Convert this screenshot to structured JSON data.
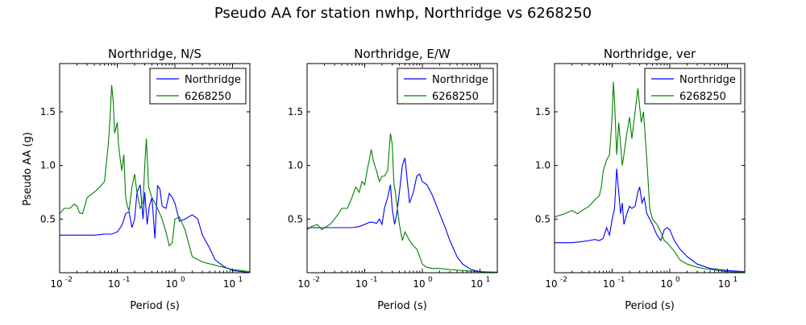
{
  "figure": {
    "suptitle": "Pseudo AA for station nwhp, Northridge vs 6268250",
    "ylabel": "Pseudo AA (g)"
  },
  "chart_data": [
    {
      "type": "line",
      "title": "Northridge, N/S",
      "xlabel": "Period (s)",
      "ylabel": "Pseudo AA (g)",
      "x_scale": "log",
      "xlim": [
        0.01,
        20
      ],
      "ylim": [
        0,
        1.95
      ],
      "yticks": [
        0.5,
        1.0,
        1.5
      ],
      "ytick_labels": [
        "0.5",
        "1.0",
        "1.5"
      ],
      "xticks": [
        0.01,
        0.1,
        1,
        10
      ],
      "xtick_labels": [
        [
          "10",
          "-2"
        ],
        [
          "10",
          "-1"
        ],
        [
          "10",
          "0"
        ],
        [
          "10",
          "1"
        ]
      ],
      "legend_position": "top-right",
      "series": [
        {
          "name": "Northridge",
          "color": "#0000ff",
          "x": [
            0.01,
            0.02,
            0.04,
            0.06,
            0.08,
            0.1,
            0.12,
            0.14,
            0.16,
            0.18,
            0.2,
            0.22,
            0.25,
            0.28,
            0.3,
            0.33,
            0.36,
            0.4,
            0.45,
            0.5,
            0.55,
            0.6,
            0.7,
            0.8,
            0.9,
            1.0,
            1.2,
            1.5,
            2.0,
            2.5,
            3.0,
            4.0,
            5.0,
            7.0,
            10,
            15,
            20
          ],
          "y": [
            0.35,
            0.35,
            0.35,
            0.36,
            0.36,
            0.38,
            0.44,
            0.55,
            0.57,
            0.42,
            0.5,
            0.75,
            0.82,
            0.5,
            0.75,
            0.45,
            0.62,
            0.7,
            0.32,
            0.81,
            0.78,
            0.62,
            0.6,
            0.74,
            0.7,
            0.65,
            0.48,
            0.5,
            0.54,
            0.5,
            0.35,
            0.23,
            0.12,
            0.06,
            0.02,
            0.01,
            0.0
          ]
        },
        {
          "name": "6268250",
          "color": "#007f00",
          "x": [
            0.01,
            0.012,
            0.015,
            0.018,
            0.02,
            0.022,
            0.025,
            0.03,
            0.035,
            0.04,
            0.05,
            0.06,
            0.07,
            0.075,
            0.08,
            0.085,
            0.09,
            0.1,
            0.105,
            0.11,
            0.12,
            0.13,
            0.14,
            0.15,
            0.16,
            0.18,
            0.2,
            0.22,
            0.25,
            0.28,
            0.3,
            0.32,
            0.35,
            0.4,
            0.45,
            0.5,
            0.6,
            0.7,
            0.8,
            0.9,
            1.0,
            1.2,
            1.5,
            2.0,
            3.0,
            5.0,
            10,
            20
          ],
          "y": [
            0.55,
            0.6,
            0.6,
            0.64,
            0.62,
            0.56,
            0.55,
            0.7,
            0.73,
            0.75,
            0.8,
            0.85,
            1.2,
            1.45,
            1.75,
            1.6,
            1.3,
            1.4,
            1.2,
            1.1,
            0.95,
            1.1,
            0.7,
            0.62,
            0.58,
            0.8,
            0.92,
            0.75,
            0.6,
            0.65,
            1.0,
            1.25,
            0.8,
            0.7,
            0.65,
            0.6,
            0.5,
            0.38,
            0.25,
            0.28,
            0.5,
            0.52,
            0.4,
            0.15,
            0.1,
            0.07,
            0.03,
            0.01
          ]
        }
      ]
    },
    {
      "type": "line",
      "title": "Northridge, E/W",
      "xlabel": "Period (s)",
      "x_scale": "log",
      "xlim": [
        0.01,
        20
      ],
      "ylim": [
        0,
        1.95
      ],
      "yticks": [
        0.5,
        1.0,
        1.5
      ],
      "ytick_labels": [
        "0.5",
        "1.0",
        "1.5"
      ],
      "xticks": [
        0.01,
        0.1,
        1,
        10
      ],
      "xtick_labels": [
        [
          "10",
          "-2"
        ],
        [
          "10",
          "-1"
        ],
        [
          "10",
          "0"
        ],
        [
          "10",
          "1"
        ]
      ],
      "legend_position": "top-right",
      "series": [
        {
          "name": "Northridge",
          "color": "#0000ff",
          "x": [
            0.01,
            0.02,
            0.04,
            0.06,
            0.08,
            0.1,
            0.12,
            0.14,
            0.16,
            0.18,
            0.2,
            0.22,
            0.25,
            0.28,
            0.3,
            0.33,
            0.36,
            0.4,
            0.45,
            0.5,
            0.55,
            0.6,
            0.7,
            0.8,
            0.9,
            1.0,
            1.2,
            1.5,
            2.0,
            2.5,
            3.0,
            4.0,
            5.0,
            7.0,
            10,
            15,
            20
          ],
          "y": [
            0.42,
            0.42,
            0.42,
            0.42,
            0.43,
            0.45,
            0.47,
            0.47,
            0.46,
            0.5,
            0.45,
            0.6,
            0.7,
            0.82,
            0.6,
            0.45,
            0.55,
            0.75,
            1.0,
            1.07,
            0.85,
            0.65,
            0.75,
            0.9,
            0.92,
            0.85,
            0.82,
            0.72,
            0.55,
            0.42,
            0.3,
            0.15,
            0.08,
            0.03,
            0.01,
            0.005,
            0.0
          ]
        },
        {
          "name": "6268250",
          "color": "#007f00",
          "x": [
            0.01,
            0.012,
            0.015,
            0.018,
            0.02,
            0.025,
            0.03,
            0.035,
            0.04,
            0.05,
            0.06,
            0.07,
            0.08,
            0.09,
            0.1,
            0.11,
            0.12,
            0.13,
            0.14,
            0.16,
            0.18,
            0.2,
            0.22,
            0.25,
            0.28,
            0.3,
            0.32,
            0.35,
            0.4,
            0.45,
            0.5,
            0.6,
            0.7,
            0.8,
            0.9,
            1.0,
            1.2,
            1.5,
            2.0,
            3.0,
            5.0,
            10,
            20
          ],
          "y": [
            0.4,
            0.43,
            0.45,
            0.4,
            0.42,
            0.45,
            0.5,
            0.55,
            0.6,
            0.6,
            0.7,
            0.8,
            0.75,
            0.85,
            0.82,
            0.95,
            1.05,
            1.15,
            1.05,
            0.95,
            0.85,
            0.9,
            0.9,
            0.95,
            1.3,
            1.2,
            0.85,
            0.7,
            0.45,
            0.3,
            0.38,
            0.3,
            0.25,
            0.22,
            0.15,
            0.08,
            0.05,
            0.04,
            0.04,
            0.03,
            0.02,
            0.01,
            0.005
          ]
        }
      ]
    },
    {
      "type": "line",
      "title": "Northridge, ver",
      "xlabel": "Period (s)",
      "x_scale": "log",
      "xlim": [
        0.01,
        20
      ],
      "ylim": [
        0,
        1.95
      ],
      "yticks": [
        0.5,
        1.0,
        1.5
      ],
      "ytick_labels": [
        "0.5",
        "1.0",
        "1.5"
      ],
      "xticks": [
        0.01,
        0.1,
        1,
        10
      ],
      "xtick_labels": [
        [
          "10",
          "-2"
        ],
        [
          "10",
          "-1"
        ],
        [
          "10",
          "0"
        ],
        [
          "10",
          "1"
        ]
      ],
      "legend_position": "top-right",
      "series": [
        {
          "name": "Northridge",
          "color": "#0000ff",
          "x": [
            0.01,
            0.02,
            0.03,
            0.04,
            0.05,
            0.06,
            0.07,
            0.08,
            0.09,
            0.1,
            0.11,
            0.12,
            0.13,
            0.14,
            0.15,
            0.16,
            0.18,
            0.2,
            0.22,
            0.25,
            0.28,
            0.3,
            0.33,
            0.36,
            0.4,
            0.45,
            0.5,
            0.6,
            0.7,
            0.8,
            0.9,
            1.0,
            1.2,
            1.5,
            2.0,
            3.0,
            5.0,
            10,
            20
          ],
          "y": [
            0.28,
            0.28,
            0.29,
            0.3,
            0.31,
            0.3,
            0.32,
            0.42,
            0.35,
            0.5,
            0.6,
            0.97,
            0.75,
            0.55,
            0.65,
            0.45,
            0.55,
            0.62,
            0.6,
            0.62,
            0.75,
            0.8,
            0.65,
            0.7,
            0.55,
            0.5,
            0.45,
            0.35,
            0.3,
            0.4,
            0.42,
            0.4,
            0.3,
            0.22,
            0.15,
            0.08,
            0.04,
            0.02,
            0.01
          ]
        },
        {
          "name": "6268250",
          "color": "#007f00",
          "x": [
            0.01,
            0.015,
            0.02,
            0.025,
            0.03,
            0.04,
            0.05,
            0.06,
            0.065,
            0.07,
            0.08,
            0.09,
            0.1,
            0.105,
            0.11,
            0.12,
            0.13,
            0.14,
            0.15,
            0.16,
            0.18,
            0.2,
            0.22,
            0.25,
            0.28,
            0.3,
            0.32,
            0.35,
            0.4,
            0.45,
            0.5,
            0.6,
            0.7,
            0.8,
            0.9,
            1.0,
            1.2,
            1.5,
            2.0,
            3.0,
            5.0,
            10,
            20
          ],
          "y": [
            0.52,
            0.55,
            0.58,
            0.55,
            0.58,
            0.62,
            0.68,
            0.72,
            0.8,
            0.95,
            1.05,
            1.1,
            1.45,
            1.78,
            1.6,
            1.1,
            1.4,
            1.2,
            1.0,
            1.1,
            1.3,
            1.45,
            1.25,
            1.5,
            1.72,
            1.55,
            1.4,
            1.5,
            1.05,
            0.6,
            0.5,
            0.45,
            0.38,
            0.3,
            0.28,
            0.25,
            0.2,
            0.12,
            0.08,
            0.05,
            0.03,
            0.01,
            0.005
          ]
        }
      ]
    }
  ]
}
